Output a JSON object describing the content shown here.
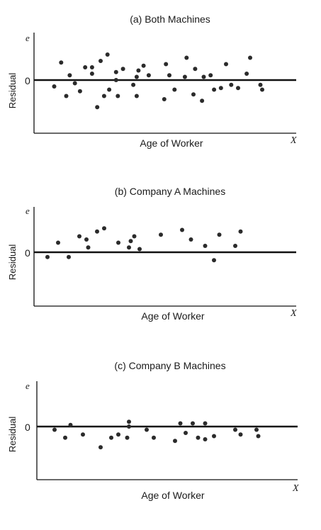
{
  "chart_data": [
    {
      "type": "scatter",
      "title": "(a) Both Machines",
      "xlabel": "Age of Worker",
      "ylabel": "Residual",
      "y_axis_var": "e",
      "x_axis_var": "X",
      "y_ticks": [
        "0"
      ],
      "grid": false,
      "reference_line_y": 0,
      "points": [
        {
          "x": 3,
          "y": -0.2
        },
        {
          "x": 5,
          "y": 0.55
        },
        {
          "x": 6.5,
          "y": -0.5
        },
        {
          "x": 7.5,
          "y": 0.15
        },
        {
          "x": 9,
          "y": -0.1
        },
        {
          "x": 10.5,
          "y": -0.35
        },
        {
          "x": 12,
          "y": 0.4
        },
        {
          "x": 14,
          "y": 0.2
        },
        {
          "x": 14,
          "y": 0.4
        },
        {
          "x": 15.5,
          "y": -0.85
        },
        {
          "x": 16.5,
          "y": 0.6
        },
        {
          "x": 17.5,
          "y": -0.5
        },
        {
          "x": 18.5,
          "y": 0.8
        },
        {
          "x": 19,
          "y": -0.3
        },
        {
          "x": 21,
          "y": 0
        },
        {
          "x": 21,
          "y": 0.25
        },
        {
          "x": 21.5,
          "y": -0.5
        },
        {
          "x": 23,
          "y": 0.35
        },
        {
          "x": 26,
          "y": -0.15
        },
        {
          "x": 27,
          "y": 0.1
        },
        {
          "x": 27,
          "y": -0.5
        },
        {
          "x": 27.5,
          "y": 0.3
        },
        {
          "x": 29,
          "y": 0.45
        },
        {
          "x": 30.5,
          "y": 0.15
        },
        {
          "x": 35,
          "y": -0.6
        },
        {
          "x": 35.5,
          "y": 0.5
        },
        {
          "x": 36.5,
          "y": 0.15
        },
        {
          "x": 38,
          "y": -0.3
        },
        {
          "x": 41,
          "y": 0.1
        },
        {
          "x": 41.5,
          "y": 0.7
        },
        {
          "x": 43.5,
          "y": -0.45
        },
        {
          "x": 44,
          "y": 0.35
        },
        {
          "x": 46,
          "y": -0.65
        },
        {
          "x": 46.5,
          "y": 0.1
        },
        {
          "x": 48.5,
          "y": 0.15
        },
        {
          "x": 49.5,
          "y": -0.3
        },
        {
          "x": 51.5,
          "y": -0.25
        },
        {
          "x": 53,
          "y": 0.5
        },
        {
          "x": 54.5,
          "y": -0.15
        },
        {
          "x": 56.5,
          "y": -0.25
        },
        {
          "x": 59,
          "y": 0.2
        },
        {
          "x": 60,
          "y": 0.7
        },
        {
          "x": 63,
          "y": -0.15
        },
        {
          "x": 63.5,
          "y": -0.3
        }
      ]
    },
    {
      "type": "scatter",
      "title": "(b) Company A Machines",
      "xlabel": "Age of Worker",
      "ylabel": "Residual",
      "y_axis_var": "e",
      "x_axis_var": "X",
      "y_ticks": [
        "0"
      ],
      "grid": false,
      "reference_line_y": 0,
      "points": [
        {
          "x": 3,
          "y": -0.15
        },
        {
          "x": 6,
          "y": 0.3
        },
        {
          "x": 9,
          "y": -0.15
        },
        {
          "x": 12,
          "y": 0.5
        },
        {
          "x": 14,
          "y": 0.4
        },
        {
          "x": 14.5,
          "y": 0.15
        },
        {
          "x": 17,
          "y": 0.65
        },
        {
          "x": 19,
          "y": 0.75
        },
        {
          "x": 23,
          "y": 0.3
        },
        {
          "x": 26,
          "y": 0.15
        },
        {
          "x": 26.5,
          "y": 0.35
        },
        {
          "x": 27.5,
          "y": 0.5
        },
        {
          "x": 29,
          "y": 0.1
        },
        {
          "x": 35,
          "y": 0.55
        },
        {
          "x": 41,
          "y": 0.7
        },
        {
          "x": 43.5,
          "y": 0.4
        },
        {
          "x": 47.5,
          "y": 0.2
        },
        {
          "x": 50,
          "y": -0.25
        },
        {
          "x": 51.5,
          "y": 0.55
        },
        {
          "x": 56,
          "y": 0.2
        },
        {
          "x": 57.5,
          "y": 0.65
        }
      ]
    },
    {
      "type": "scatter",
      "title": "(c) Company B Machines",
      "xlabel": "Age of Worker",
      "ylabel": "Residual",
      "y_axis_var": "e",
      "x_axis_var": "X",
      "y_ticks": [
        "0"
      ],
      "grid": false,
      "reference_line_y": 0,
      "points": [
        {
          "x": 6,
          "y": -0.1
        },
        {
          "x": 9,
          "y": -0.35
        },
        {
          "x": 10.5,
          "y": 0.05
        },
        {
          "x": 14,
          "y": -0.25
        },
        {
          "x": 19,
          "y": -0.65
        },
        {
          "x": 22,
          "y": -0.35
        },
        {
          "x": 24,
          "y": -0.25
        },
        {
          "x": 26.5,
          "y": -0.35
        },
        {
          "x": 27,
          "y": 0.15
        },
        {
          "x": 27,
          "y": 0
        },
        {
          "x": 32,
          "y": -0.1
        },
        {
          "x": 34,
          "y": -0.35
        },
        {
          "x": 40,
          "y": -0.45
        },
        {
          "x": 41.5,
          "y": 0.1
        },
        {
          "x": 43,
          "y": -0.2
        },
        {
          "x": 45,
          "y": 0.1
        },
        {
          "x": 46.5,
          "y": -0.35
        },
        {
          "x": 48.5,
          "y": -0.4
        },
        {
          "x": 48.5,
          "y": 0.1
        },
        {
          "x": 51,
          "y": -0.3
        },
        {
          "x": 57,
          "y": -0.1
        },
        {
          "x": 58.5,
          "y": -0.25
        },
        {
          "x": 63,
          "y": -0.1
        },
        {
          "x": 63.5,
          "y": -0.3
        }
      ]
    }
  ]
}
